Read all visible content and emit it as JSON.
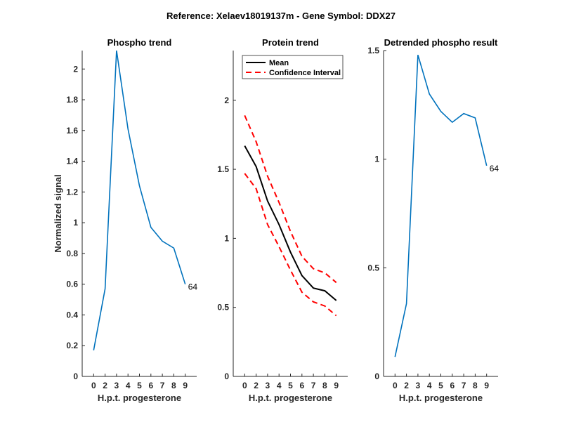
{
  "figure_title": "Reference:  Xelaev18019137m - Gene Symbol:  DDX27",
  "chart_data": [
    {
      "type": "line",
      "title": "Phospho trend",
      "xlabel": "H.p.t. progesterone",
      "ylabel": "Normalized signal",
      "categories": [
        "0",
        "2",
        "3",
        "4",
        "5",
        "6",
        "7",
        "8",
        "9"
      ],
      "ylim": [
        0,
        2.12
      ],
      "yticks": [
        0,
        0.2,
        0.4,
        0.6,
        0.8,
        1,
        1.2,
        1.4,
        1.6,
        1.8,
        2
      ],
      "ytick_labels": [
        "0",
        "0.2",
        "0.4",
        "0.6",
        "0.8",
        "1",
        "1.2",
        "1.4",
        "1.6",
        "1.8",
        "2"
      ],
      "series": [
        {
          "name": "Phospho",
          "color": "#0072BD",
          "style": "solid",
          "values": [
            0.17,
            0.57,
            2.12,
            1.61,
            1.24,
            0.97,
            0.88,
            0.835,
            0.6
          ]
        }
      ],
      "annotation": "64"
    },
    {
      "type": "line",
      "title": "Protein trend",
      "xlabel": "H.p.t. progesterone",
      "ylabel": "",
      "categories": [
        "0",
        "2",
        "3",
        "4",
        "5",
        "6",
        "7",
        "8",
        "9"
      ],
      "ylim": [
        0,
        2.36
      ],
      "yticks": [
        0,
        0.5,
        1,
        1.5,
        2
      ],
      "ytick_labels": [
        "0",
        "0.5",
        "1",
        "1.5",
        "2"
      ],
      "legend_position": "top-left",
      "legend": [
        "Mean",
        "Confidence Interval"
      ],
      "series": [
        {
          "name": "Mean",
          "color": "#000000",
          "style": "solid",
          "values": [
            1.67,
            1.52,
            1.27,
            1.1,
            0.9,
            0.73,
            0.64,
            0.62,
            0.55
          ]
        },
        {
          "name": "Confidence Interval upper",
          "color": "#FF0000",
          "style": "dashed",
          "values": [
            1.89,
            1.7,
            1.45,
            1.26,
            1.05,
            0.87,
            0.78,
            0.75,
            0.68
          ]
        },
        {
          "name": "Confidence Interval lower",
          "color": "#FF0000",
          "style": "dashed",
          "values": [
            1.47,
            1.36,
            1.1,
            0.94,
            0.77,
            0.61,
            0.54,
            0.51,
            0.44
          ]
        }
      ]
    },
    {
      "type": "line",
      "title": "Detrended phospho result",
      "xlabel": "H.p.t. progesterone",
      "ylabel": "",
      "categories": [
        "0",
        "2",
        "3",
        "4",
        "5",
        "6",
        "7",
        "8",
        "9"
      ],
      "ylim": [
        0,
        1.5
      ],
      "yticks": [
        0,
        0.5,
        1,
        1.5
      ],
      "ytick_labels": [
        "0",
        "0.5",
        "1",
        "1.5"
      ],
      "series": [
        {
          "name": "Detrended",
          "color": "#0072BD",
          "style": "solid",
          "values": [
            0.09,
            0.335,
            1.48,
            1.3,
            1.22,
            1.17,
            1.21,
            1.19,
            0.97
          ]
        }
      ],
      "annotation": "64"
    }
  ]
}
